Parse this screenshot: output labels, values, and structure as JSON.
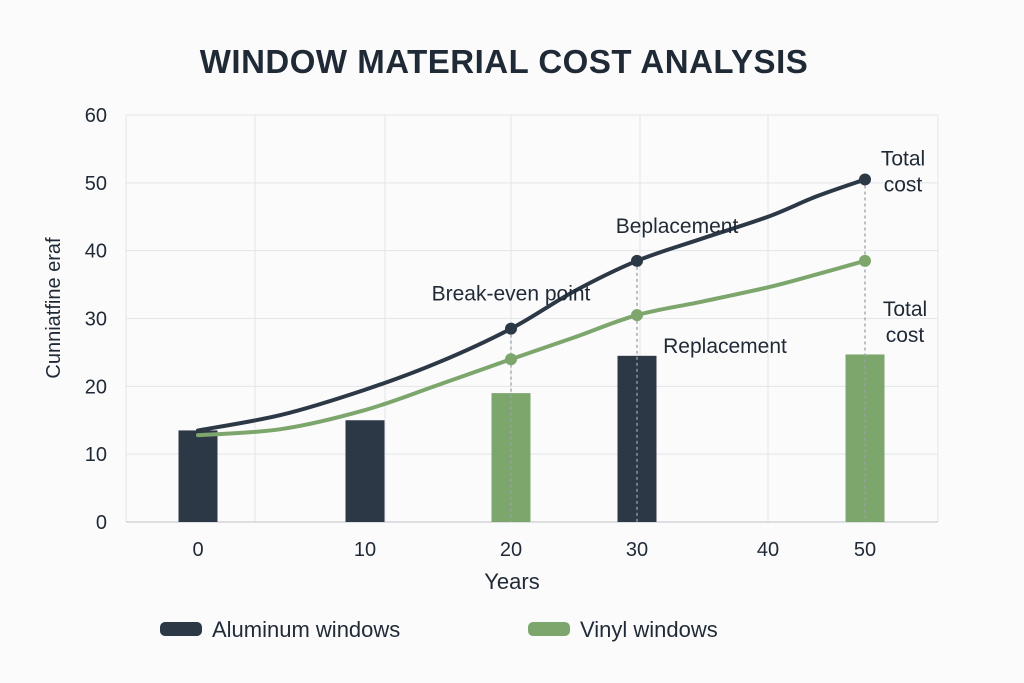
{
  "chart_data": {
    "type": "line",
    "title": "WINDOW MATERIAL COST ANALYSIS",
    "xlabel": "Years",
    "ylabel": "Cunniatfine eraf",
    "xlim": [
      0,
      50
    ],
    "ylim": [
      0,
      60
    ],
    "x_ticks": [
      0,
      10,
      20,
      30,
      40,
      50
    ],
    "y_ticks": [
      0,
      10,
      20,
      30,
      40,
      50,
      60
    ],
    "grid": true,
    "legend_position": "bottom",
    "series": [
      {
        "name": "Aluminum windows",
        "color": "#2d3846",
        "x": [
          0,
          5,
          10,
          15,
          20,
          25,
          30,
          35,
          40,
          45,
          50
        ],
        "y": [
          13.5,
          15.8,
          19.5,
          23.5,
          28.5,
          34,
          38.5,
          41.8,
          45,
          48,
          50.5
        ],
        "markers_at_x": [
          20,
          30,
          50
        ]
      },
      {
        "name": "Vinyl windows",
        "color": "#7da66d",
        "x": [
          0,
          5,
          10,
          15,
          20,
          25,
          30,
          35,
          40,
          45,
          50
        ],
        "y": [
          12.8,
          13.7,
          16.5,
          20.2,
          24,
          27.2,
          30.5,
          32.5,
          34.6,
          36.5,
          38.5
        ],
        "markers_at_x": [
          20,
          30,
          50
        ]
      }
    ],
    "bars": [
      {
        "x": 0,
        "value": 13.5,
        "series": "Aluminum windows"
      },
      {
        "x": 10,
        "value": 15,
        "series": "Aluminum windows"
      },
      {
        "x": 20,
        "value": 19,
        "series": "Vinyl windows"
      },
      {
        "x": 30,
        "value": 24.5,
        "series": "Aluminum windows"
      },
      {
        "x": 50,
        "value": 24.7,
        "series": "Vinyl windows"
      }
    ],
    "annotations": [
      {
        "text": "Break-even point",
        "x": 20,
        "y": 28.5
      },
      {
        "text": "Beplacement",
        "x": 30,
        "y": 38.5
      },
      {
        "text": "Replacement",
        "x": 30,
        "y": 30.5
      },
      {
        "text": "Total\ncost",
        "x": 50,
        "y": 50.5
      },
      {
        "text": "Total\ncost",
        "x": 50,
        "y": 38.5
      }
    ],
    "dashed_guides_at_x": [
      20,
      30,
      50
    ]
  }
}
